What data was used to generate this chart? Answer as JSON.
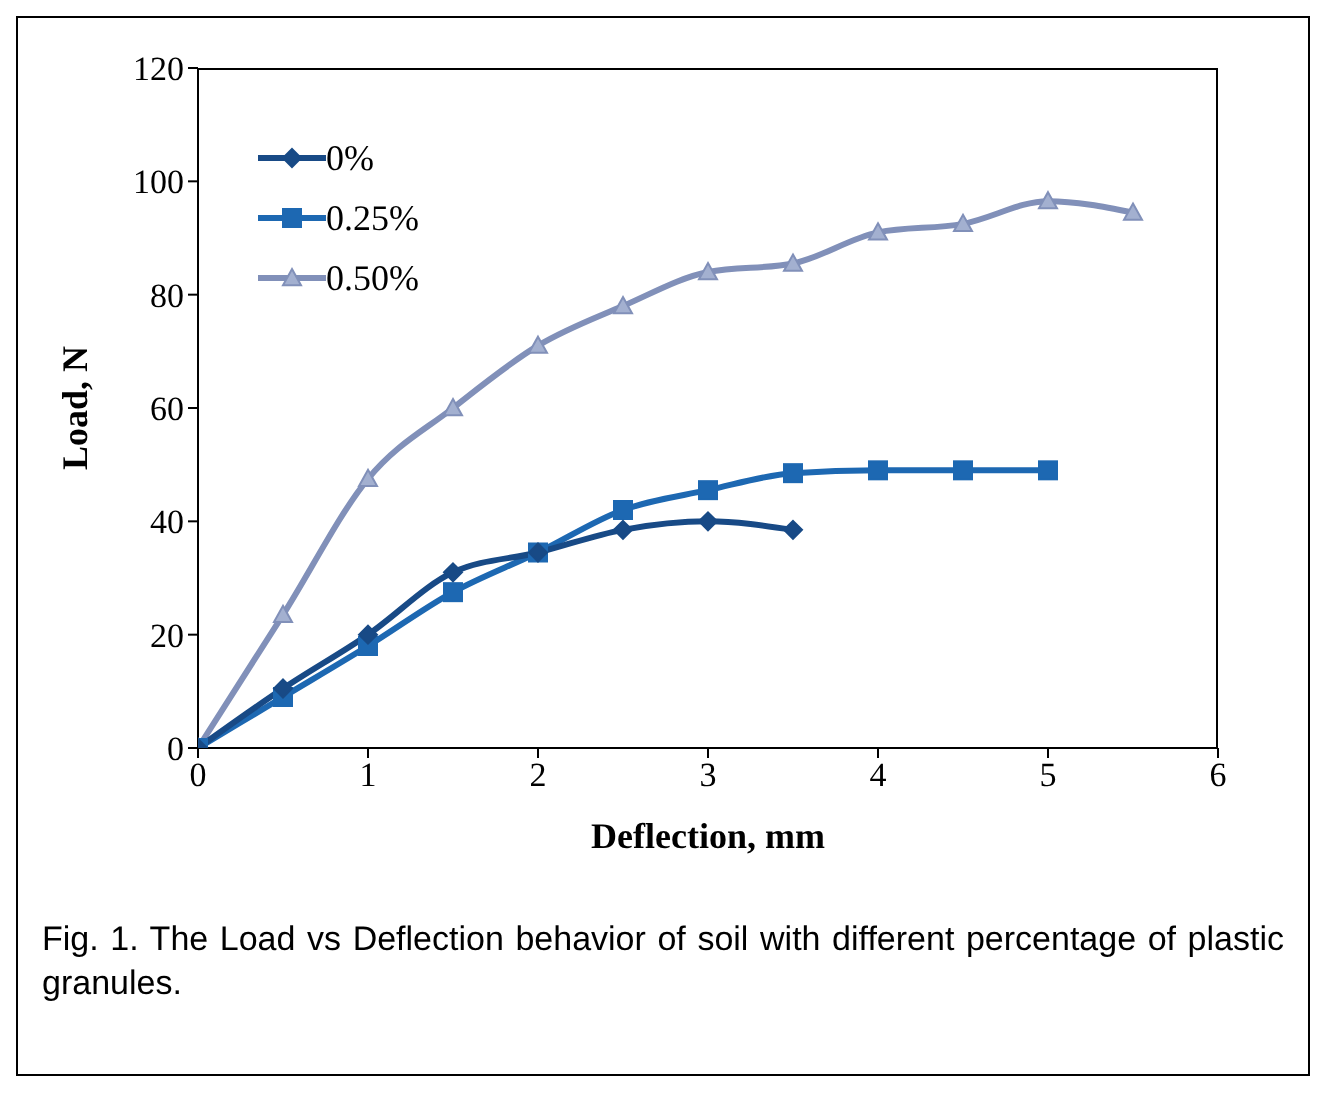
{
  "chart_data": {
    "type": "line",
    "xlabel": "Deflection, mm",
    "ylabel": "Load, N",
    "xlim": [
      0,
      6
    ],
    "xticks": [
      0,
      1,
      2,
      3,
      4,
      5,
      6
    ],
    "ylim": [
      0,
      120
    ],
    "yticks": [
      0,
      20,
      40,
      60,
      80,
      100,
      120
    ],
    "grid": false,
    "legend": "top left",
    "line_style": "solid",
    "annotations": [
      "Fig. 1. The Load vs Deflection behavior of soil with different percentage of plastic granules."
    ],
    "series": [
      {
        "name": "0%",
        "color": "#184a86",
        "marker": "diamond",
        "x": [
          0,
          0.5,
          1,
          1.5,
          2,
          2.5,
          3,
          3.5
        ],
        "values": [
          0,
          10.5,
          20,
          31,
          34.5,
          38.5,
          40,
          38.5
        ]
      },
      {
        "name": "0.25%",
        "color": "#1d68b2",
        "marker": "square",
        "x": [
          0,
          0.5,
          1,
          1.5,
          2,
          2.5,
          3,
          3.5,
          4,
          4.5,
          5
        ],
        "values": [
          0,
          9,
          18,
          27.5,
          34.5,
          42,
          45.5,
          48.5,
          49,
          49,
          49
        ]
      },
      {
        "name": "0.50%",
        "color": "#8190b9",
        "marker": "triangle",
        "x": [
          0,
          0.5,
          1,
          1.5,
          2,
          2.5,
          3,
          3.5,
          4,
          4.5,
          5,
          5.5
        ],
        "values": [
          0,
          23.5,
          47.5,
          60,
          71,
          78,
          84,
          85.5,
          91,
          92.5,
          96.5,
          94.5
        ]
      }
    ]
  }
}
